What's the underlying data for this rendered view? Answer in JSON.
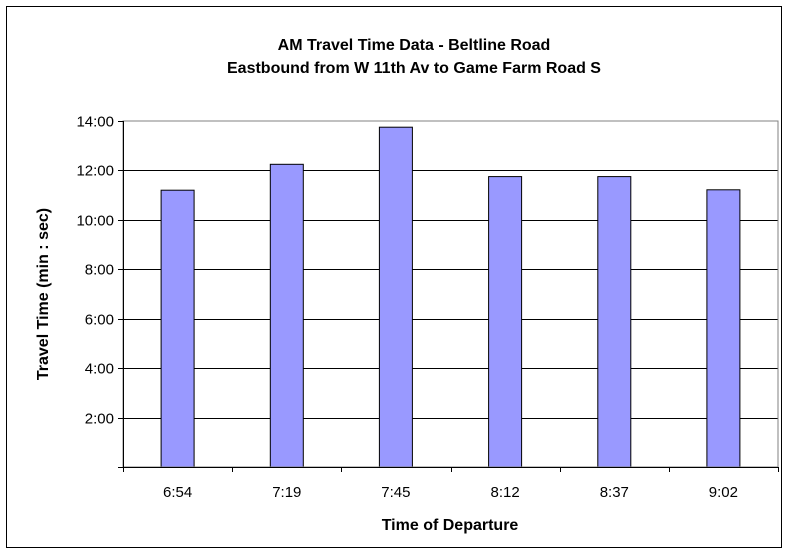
{
  "chart_data": {
    "type": "bar",
    "title": "AM Travel Time Data - Beltline Road",
    "subtitle": "Eastbound from W 11th Av to Game Farm Road S",
    "xlabel": "Time of Departure",
    "ylabel": "Travel Time (min : sec)",
    "categories": [
      "6:54",
      "7:19",
      "7:45",
      "8:12",
      "8:37",
      "9:02"
    ],
    "values_seconds": [
      672,
      735,
      825,
      705,
      705,
      673
    ],
    "y_ticks": [
      "",
      "2:00",
      "4:00",
      "6:00",
      "8:00",
      "10:00",
      "12:00",
      "14:00"
    ],
    "ylim_seconds": [
      0,
      840
    ],
    "grid": true,
    "legend": false,
    "bar_color": "#9999ff"
  }
}
